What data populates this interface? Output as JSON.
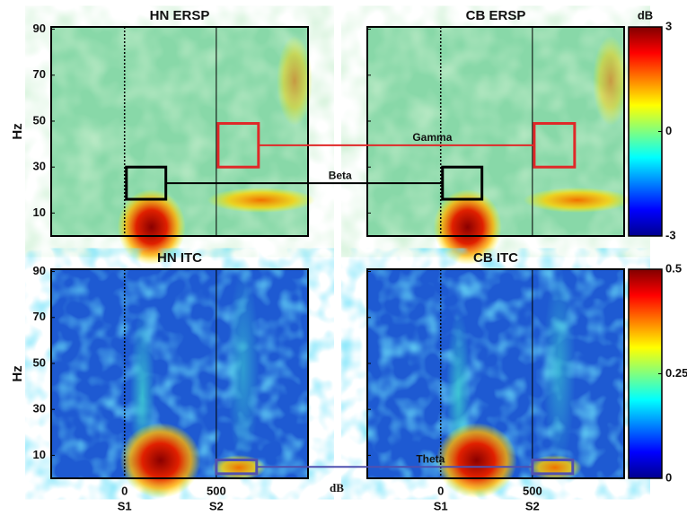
{
  "figure": {
    "ylabel": "Hz",
    "xlim": [
      -400,
      1000
    ],
    "ylim": [
      0,
      91
    ],
    "yticks": [
      10,
      30,
      50,
      70,
      90
    ],
    "xticks": [
      0,
      500
    ],
    "event_labels": [
      "S1",
      "S2"
    ],
    "panels": [
      {
        "title": "HN ERSP",
        "colorbar": 0
      },
      {
        "title": "CB ERSP",
        "colorbar": 0
      },
      {
        "title": "HN ITC",
        "colorbar": 1
      },
      {
        "title": "CB ITC",
        "colorbar": 1
      }
    ],
    "colorbars": [
      {
        "label": "dB",
        "lim": [
          -3,
          3
        ],
        "ticks": [
          -3,
          0,
          3
        ]
      },
      {
        "lim": [
          0,
          0.5
        ],
        "ticks": [
          0,
          0.25,
          0.5
        ]
      }
    ],
    "annotations": [
      {
        "label": "Gamma",
        "row": 0,
        "xrange": [
          510,
          730
        ],
        "yrange": [
          30,
          49
        ],
        "color": "#e02828"
      },
      {
        "label": "Beta",
        "row": 0,
        "xrange": [
          10,
          225
        ],
        "yrange": [
          16,
          30
        ],
        "color": "#000000"
      },
      {
        "label": "Theta",
        "row": 1,
        "xrange": [
          500,
          720
        ],
        "yrange": [
          2,
          8
        ],
        "color": "#5050b0"
      }
    ],
    "footnote": "dB"
  }
}
